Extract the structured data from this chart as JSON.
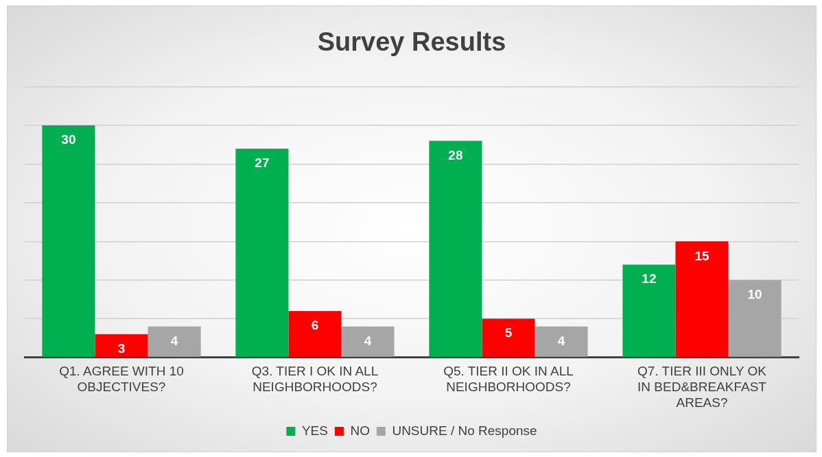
{
  "chart_data": {
    "type": "bar",
    "title": "Survey Results",
    "categories": [
      "Q1. AGREE WITH 10 OBJECTIVES?",
      "Q3. TIER I OK IN ALL NEIGHBORHOODS?",
      "Q5. TIER II OK IN ALL NEIGHBORHOODS?",
      "Q7. TIER III ONLY OK IN BED&BREAKFAST AREAS?"
    ],
    "series": [
      {
        "name": "YES",
        "color": "#00b050",
        "values": [
          30,
          27,
          28,
          12
        ]
      },
      {
        "name": "NO",
        "color": "#ff0000",
        "values": [
          3,
          6,
          5,
          15
        ]
      },
      {
        "name": "UNSURE / No Response",
        "color": "#a6a6a6",
        "values": [
          4,
          4,
          4,
          10
        ]
      }
    ],
    "ylim": [
      0,
      35
    ],
    "yticks": [
      {
        "value": 0,
        "label": null
      },
      {
        "value": 5,
        "label": null
      },
      {
        "value": 10,
        "label": null
      },
      {
        "value": 15,
        "label": null
      },
      {
        "value": 20,
        "label": null
      },
      {
        "value": 25,
        "label": null
      },
      {
        "value": 30,
        "label": null
      },
      {
        "value": 35,
        "label": null
      }
    ],
    "tick_labels": "x",
    "grid": "y",
    "legend": "bottom",
    "data_labels": true
  }
}
